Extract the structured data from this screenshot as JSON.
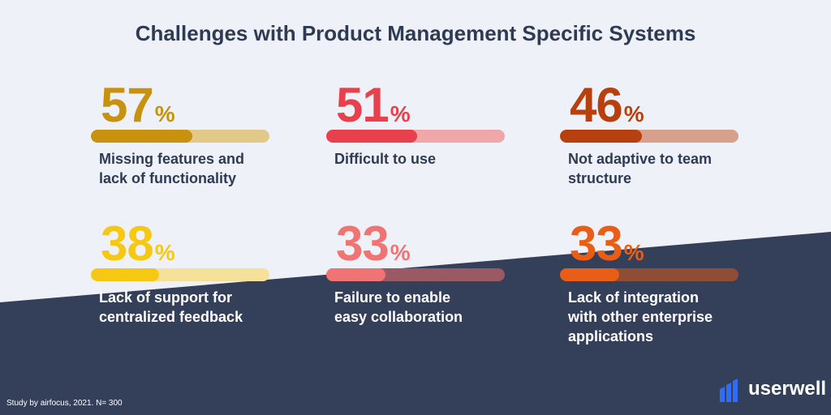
{
  "title": "Challenges with Product Management Specific Systems",
  "chart_data": {
    "type": "bar",
    "title": "Challenges with Product Management Specific Systems",
    "unit": "%",
    "ylim": [
      0,
      100
    ],
    "categories": [
      "Missing features and lack of functionality",
      "Difficult to use",
      "Not adaptive to team structure",
      "Lack of support for centralized feedback",
      "Failure to enable easy collaboration",
      "Lack of integration with other enterprise applications"
    ],
    "values": [
      57,
      51,
      46,
      38,
      33,
      33
    ],
    "colors": [
      "#c8920f",
      "#e8404d",
      "#b8400f",
      "#f6c814",
      "#f07474",
      "#e85e17"
    ],
    "track_colors": [
      "#e2c98a",
      "#efa7aa",
      "#d6a08c",
      "#f6e19a",
      "#9a5a64",
      "#8f4d35"
    ]
  },
  "stats": [
    {
      "pct": "57",
      "sign": "%",
      "label_lines": [
        "Missing features and",
        "lack of functionality"
      ]
    },
    {
      "pct": "51",
      "sign": "%",
      "label_lines": [
        "Difficult to use"
      ]
    },
    {
      "pct": "46",
      "sign": "%",
      "label_lines": [
        "Not adaptive to team",
        "structure"
      ]
    },
    {
      "pct": "38",
      "sign": "%",
      "label_lines": [
        "Lack of support for",
        "centralized feedback"
      ]
    },
    {
      "pct": "33",
      "sign": "%",
      "label_lines": [
        "Failure to enable",
        "easy collaboration"
      ]
    },
    {
      "pct": "33",
      "sign": "%",
      "label_lines": [
        "Lack of integration",
        "with other enterprise",
        "applications"
      ]
    }
  ],
  "footer": "Study by airfocus, 2021. N= 300",
  "logo": {
    "text": "userwell",
    "icon": "bar-chart-logo-icon",
    "color": "#2f6df6"
  }
}
